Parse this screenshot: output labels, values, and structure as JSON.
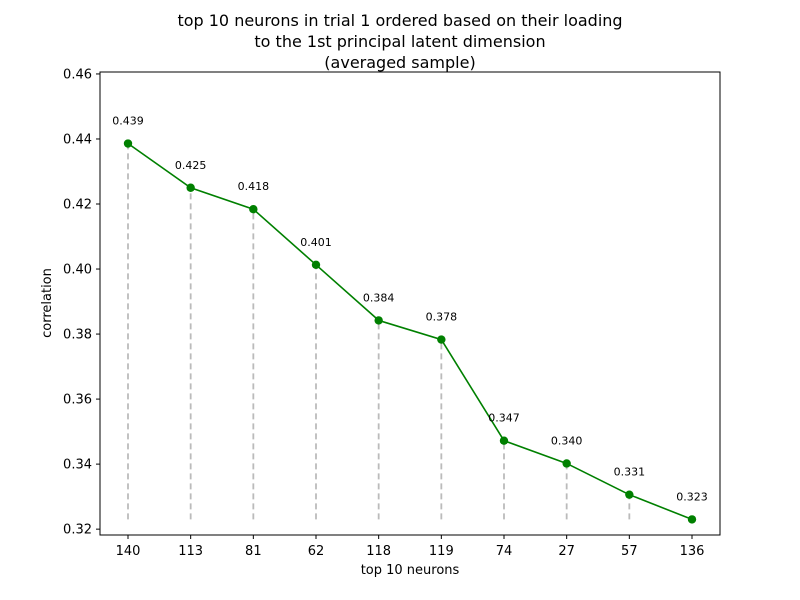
{
  "chart_data": {
    "type": "line",
    "title_lines": [
      "top 10 neurons in trial 1 ordered based on their loading",
      "to the 1st principal latent dimension",
      "(averaged sample)"
    ],
    "xlabel": "top 10 neurons",
    "ylabel": "correlation",
    "categories": [
      "140",
      "113",
      "81",
      "62",
      "118",
      "119",
      "74",
      "27",
      "57",
      "136"
    ],
    "values": [
      0.4386,
      0.425,
      0.4184,
      0.4013,
      0.3842,
      0.3783,
      0.3472,
      0.3402,
      0.3306,
      0.323
    ],
    "value_labels": [
      "0.439",
      "0.425",
      "0.418",
      "0.401",
      "0.384",
      "0.378",
      "0.347",
      "0.340",
      "0.331",
      "0.323"
    ],
    "ylim": [
      0.3182,
      0.4606
    ],
    "yticks": [
      "0.32",
      "0.34",
      "0.36",
      "0.38",
      "0.40",
      "0.42",
      "0.44",
      "0.46"
    ],
    "stem_base": 0.323,
    "grid": false,
    "line_color": "#008000",
    "stem_color": "#bbbbbb"
  }
}
